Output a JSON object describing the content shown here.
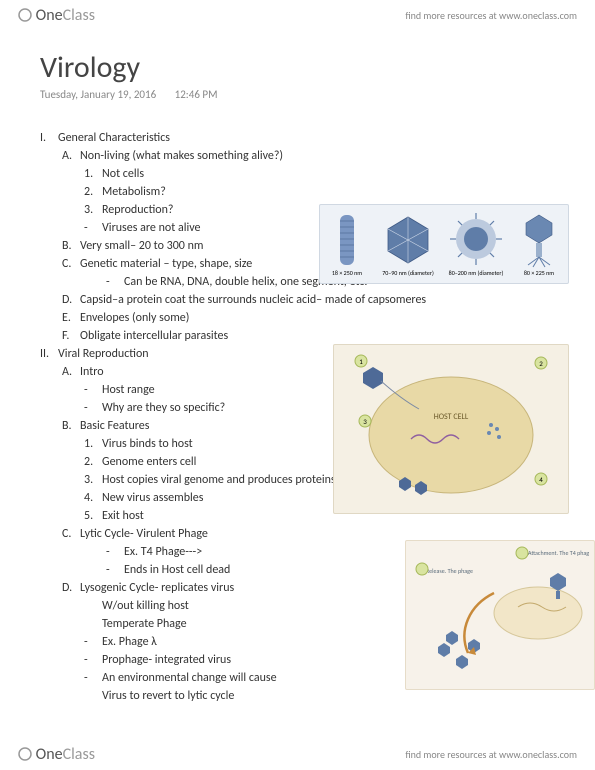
{
  "brand": {
    "first": "One",
    "second": "Class"
  },
  "header": {
    "link": "find more resources at www.oneclass.com"
  },
  "footer": {
    "link": "find more resources at www.oneclass.com"
  },
  "title": "Virology",
  "date": "Tuesday, January 19, 2016",
  "time": "12:46 PM",
  "outline": [
    {
      "lvl": "sec",
      "m": "I.",
      "t": "General Characteristics"
    },
    {
      "lvl": "a",
      "m": "A.",
      "t": "Non-living (what makes something alive?)"
    },
    {
      "lvl": "b",
      "m": "1.",
      "t": "Not cells"
    },
    {
      "lvl": "b",
      "m": "2.",
      "t": "Metabolism?"
    },
    {
      "lvl": "b",
      "m": "3.",
      "t": "Reproduction?"
    },
    {
      "lvl": "b",
      "m": "-",
      "t": "Viruses are not alive"
    },
    {
      "lvl": "a",
      "m": "B.",
      "t": "Very small– 20 to 300 nm"
    },
    {
      "lvl": "a",
      "m": "C.",
      "t": "Genetic material – type, shape, size"
    },
    {
      "lvl": "c",
      "m": "-",
      "t": "Can be RNA, DNA, double helix, one segment, etc."
    },
    {
      "lvl": "a",
      "m": "D.",
      "t": "Capsid–a protein coat the surrounds nucleic acid– made of capsomeres"
    },
    {
      "lvl": "a",
      "m": "E.",
      "t": "Envelopes (only some)"
    },
    {
      "lvl": "a",
      "m": "F.",
      "t": "Obligate intercellular parasites"
    },
    {
      "lvl": "sec",
      "m": "II.",
      "t": "Viral Reproduction"
    },
    {
      "lvl": "a",
      "m": "A.",
      "t": "Intro"
    },
    {
      "lvl": "b",
      "m": "-",
      "t": "Host range"
    },
    {
      "lvl": "b",
      "m": "-",
      "t": "Why are they so specific?"
    },
    {
      "lvl": "a",
      "m": "B.",
      "t": "Basic Features"
    },
    {
      "lvl": "b",
      "m": "1.",
      "t": "Virus binds to host"
    },
    {
      "lvl": "b",
      "m": "2.",
      "t": "Genome enters cell"
    },
    {
      "lvl": "b",
      "m": "3.",
      "t": "Host copies viral genome and produces proteins"
    },
    {
      "lvl": "b",
      "m": "4.",
      "t": "New virus assembles"
    },
    {
      "lvl": "b",
      "m": "5.",
      "t": "Exit host"
    },
    {
      "lvl": "a",
      "m": "C.",
      "t": "Lytic Cycle- Virulent Phage"
    },
    {
      "lvl": "c",
      "m": "-",
      "t": "Ex. T4 Phage--->"
    },
    {
      "lvl": "c",
      "m": "-",
      "t": "Ends in Host cell dead"
    },
    {
      "lvl": "a",
      "m": "D.",
      "t": "Lysogenic Cycle- replicates virus"
    },
    {
      "lvl": "b",
      "m": "",
      "t": "W/out killing host"
    },
    {
      "lvl": "b",
      "m": "",
      "t": "Temperate Phage"
    },
    {
      "lvl": "b",
      "m": "-",
      "t": "Ex. Phage λ"
    },
    {
      "lvl": "b",
      "m": "-",
      "t": "Prophage- integrated virus"
    },
    {
      "lvl": "b",
      "m": "-",
      "t": "An environmental change will cause"
    },
    {
      "lvl": "b",
      "m": "",
      "t": "Virus to revert to lytic cycle"
    }
  ],
  "figures": {
    "virus_shapes": {
      "labels": [
        "18 × 250 nm",
        "70–90 nm (diameter)",
        "80–200 nm (diameter)",
        "80 × 225 nm"
      ],
      "colors": {
        "rod": "#7a96c2",
        "icosa": "#5f7da8",
        "envelope": "#8aa2c6",
        "phage_head": "#6a88b2",
        "phage_tail": "#9ab0cc"
      }
    },
    "host_cell": {
      "colors": {
        "cell_fill": "#e8d9a6",
        "cell_stroke": "#c7b57a",
        "virus": "#4e6a97",
        "rna": "#8f5fa0"
      },
      "labels": {
        "center": "HOST CELL",
        "n1": "1",
        "n2": "2",
        "n3": "3",
        "n4": "4"
      }
    },
    "phage_cycle": {
      "colors": {
        "cell_fill": "#f2e6c8",
        "cell_stroke": "#d6c79a",
        "phage": "#5f7da8"
      },
      "labels": {
        "attach": "Attachment. The T4 phag",
        "release": "Release. The phage"
      }
    }
  },
  "style": {
    "page_bg": "#ffffff",
    "text_color": "#333333",
    "muted_color": "#888888",
    "title_fontsize": 30,
    "body_fontsize": 12,
    "meta_fontsize": 11
  }
}
